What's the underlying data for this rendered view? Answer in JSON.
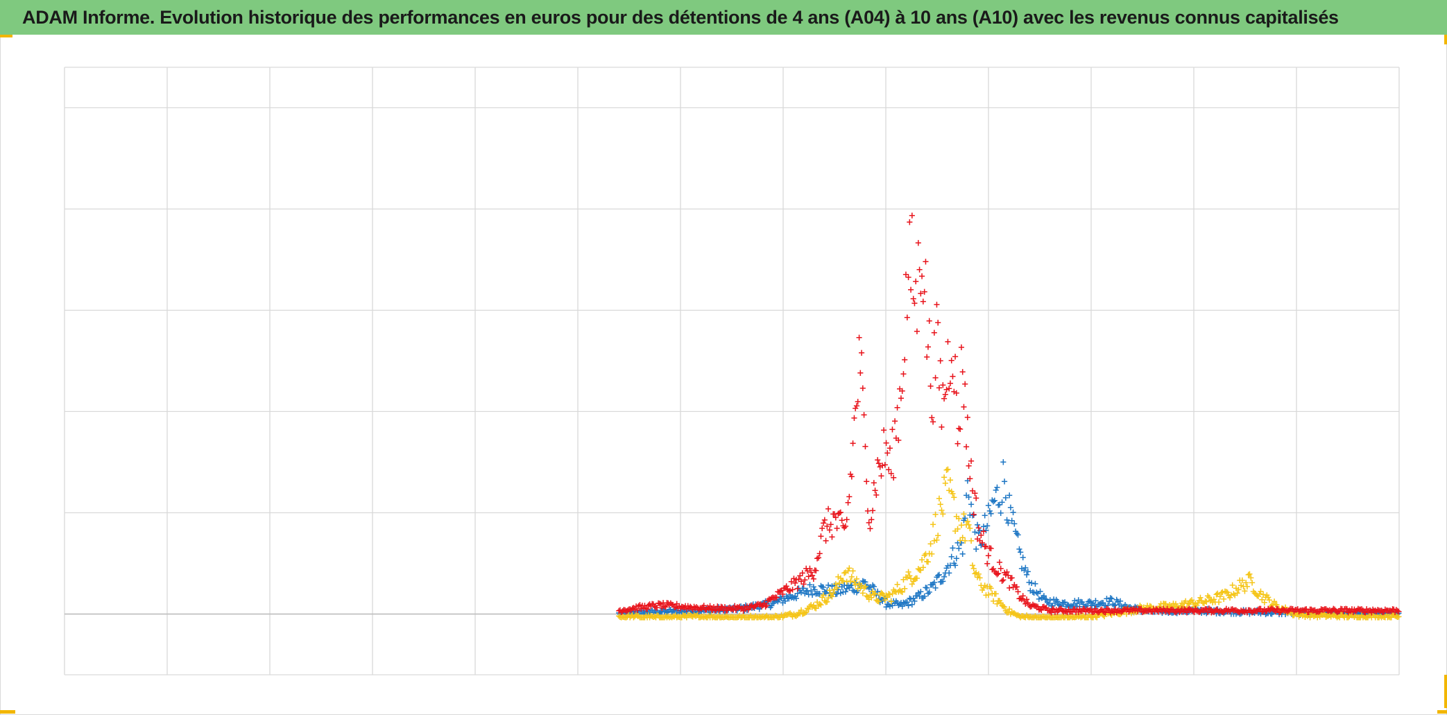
{
  "title": "ADAM Informe. Evolution historique des performances en euros pour des détentions de 4 ans (A04) à 10 ans (A10) avec les revenus connus capitalisés",
  "colors": {
    "title_background": "#7fc97f",
    "series_blue": "#1f77c4",
    "series_yellow": "#f5c518",
    "series_red": "#e8141c",
    "grid": "#d9d9d9"
  },
  "chart_data": {
    "type": "scatter",
    "title": "ADAM Informe. Evolution historique des performances en euros pour des détentions de 4 ans (A04) à 10 ans (A10) avec les revenus connus capitalisés",
    "xlabel": "",
    "ylabel": "",
    "x_tick_labels": [],
    "y_tick_labels": [],
    "xlim": [
      0,
      13
    ],
    "ylim": [
      -0.6,
      5.4
    ],
    "grid": true,
    "legend": "none",
    "marker": "+",
    "series": [
      {
        "color": "#1f77c4",
        "points": [
          [
            5.4,
            0.0
          ],
          [
            5.8,
            0.02
          ],
          [
            6.2,
            0.03
          ],
          [
            6.6,
            0.05
          ],
          [
            6.9,
            0.1
          ],
          [
            7.1,
            0.18
          ],
          [
            7.3,
            0.25
          ],
          [
            7.5,
            0.22
          ],
          [
            7.65,
            0.25
          ],
          [
            7.8,
            0.3
          ],
          [
            7.9,
            0.2
          ],
          [
            8.0,
            0.1
          ],
          [
            8.15,
            0.08
          ],
          [
            8.3,
            0.15
          ],
          [
            8.45,
            0.25
          ],
          [
            8.55,
            0.38
          ],
          [
            8.65,
            0.55
          ],
          [
            8.75,
            0.7
          ],
          [
            8.8,
            1.3
          ],
          [
            8.85,
            0.9
          ],
          [
            8.9,
            0.7
          ],
          [
            8.95,
            0.8
          ],
          [
            9.0,
            0.9
          ],
          [
            9.05,
            1.1
          ],
          [
            9.12,
            1.2
          ],
          [
            9.15,
            1.35
          ],
          [
            9.2,
            1.0
          ],
          [
            9.3,
            0.6
          ],
          [
            9.4,
            0.3
          ],
          [
            9.55,
            0.12
          ],
          [
            9.75,
            0.1
          ],
          [
            10.0,
            0.1
          ],
          [
            10.2,
            0.12
          ],
          [
            10.4,
            0.05
          ],
          [
            10.6,
            0.02
          ],
          [
            10.9,
            0.03
          ],
          [
            11.3,
            0.02
          ],
          [
            11.8,
            0.01
          ],
          [
            12.3,
            0.0
          ],
          [
            13.0,
            0.0
          ]
        ]
      },
      {
        "color": "#f5c518",
        "points": [
          [
            5.4,
            0.0
          ],
          [
            5.8,
            -0.01
          ],
          [
            6.2,
            0.0
          ],
          [
            6.6,
            -0.01
          ],
          [
            6.9,
            -0.01
          ],
          [
            7.1,
            0.02
          ],
          [
            7.3,
            0.1
          ],
          [
            7.5,
            0.25
          ],
          [
            7.6,
            0.45
          ],
          [
            7.7,
            0.35
          ],
          [
            7.8,
            0.25
          ],
          [
            7.9,
            0.18
          ],
          [
            8.05,
            0.2
          ],
          [
            8.2,
            0.35
          ],
          [
            8.35,
            0.5
          ],
          [
            8.45,
            0.75
          ],
          [
            8.5,
            0.95
          ],
          [
            8.55,
            1.1
          ],
          [
            8.6,
            1.25
          ],
          [
            8.65,
            1.1
          ],
          [
            8.7,
            0.95
          ],
          [
            8.75,
            0.85
          ],
          [
            8.8,
            0.9
          ],
          [
            8.85,
            0.5
          ],
          [
            8.9,
            0.35
          ],
          [
            9.0,
            0.25
          ],
          [
            9.1,
            0.15
          ],
          [
            9.2,
            0.05
          ],
          [
            9.3,
            0.0
          ],
          [
            9.6,
            -0.02
          ],
          [
            10.0,
            0.0
          ],
          [
            10.5,
            0.08
          ],
          [
            10.8,
            0.1
          ],
          [
            11.1,
            0.15
          ],
          [
            11.3,
            0.2
          ],
          [
            11.45,
            0.3
          ],
          [
            11.55,
            0.35
          ],
          [
            11.65,
            0.22
          ],
          [
            11.8,
            0.1
          ],
          [
            12.0,
            0.02
          ],
          [
            12.5,
            0.0
          ],
          [
            13.0,
            0.0
          ]
        ]
      },
      {
        "color": "#e8141c",
        "points": [
          [
            5.4,
            0.0
          ],
          [
            5.6,
            0.03
          ],
          [
            5.8,
            0.05
          ],
          [
            6.0,
            0.04
          ],
          [
            6.3,
            0.02
          ],
          [
            6.6,
            0.02
          ],
          [
            6.8,
            0.05
          ],
          [
            6.95,
            0.15
          ],
          [
            7.1,
            0.25
          ],
          [
            7.3,
            0.4
          ],
          [
            7.4,
            0.8
          ],
          [
            7.5,
            0.9
          ],
          [
            7.6,
            0.75
          ],
          [
            7.65,
            1.2
          ],
          [
            7.7,
            1.9
          ],
          [
            7.75,
            2.5
          ],
          [
            7.8,
            1.5
          ],
          [
            7.85,
            0.9
          ],
          [
            7.9,
            1.3
          ],
          [
            8.0,
            1.6
          ],
          [
            8.05,
            1.4
          ],
          [
            8.1,
            1.8
          ],
          [
            8.15,
            2.2
          ],
          [
            8.2,
            3.1
          ],
          [
            8.25,
            3.4
          ],
          [
            8.3,
            3.0
          ],
          [
            8.35,
            3.8
          ],
          [
            8.4,
            2.8
          ],
          [
            8.45,
            2.2
          ],
          [
            8.5,
            2.6
          ],
          [
            8.55,
            2.0
          ],
          [
            8.6,
            2.4
          ],
          [
            8.65,
            2.8
          ],
          [
            8.7,
            1.7
          ],
          [
            8.75,
            2.5
          ],
          [
            8.8,
            1.6
          ],
          [
            8.85,
            1.2
          ],
          [
            8.9,
            0.8
          ],
          [
            9.0,
            0.55
          ],
          [
            9.1,
            0.4
          ],
          [
            9.2,
            0.3
          ],
          [
            9.3,
            0.15
          ],
          [
            9.4,
            0.05
          ],
          [
            9.6,
            0.0
          ],
          [
            10.0,
            0.0
          ],
          [
            11.0,
            0.0
          ],
          [
            12.0,
            0.0
          ],
          [
            13.0,
            0.0
          ]
        ]
      }
    ]
  }
}
